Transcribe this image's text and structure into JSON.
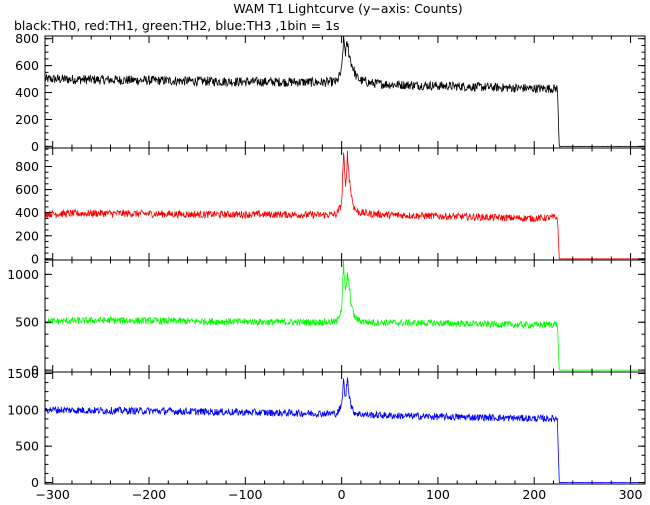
{
  "chart_data": {
    "type": "line",
    "title": "WAM T1 Lightcurve (y−axis: Counts)",
    "subtitle": "black:TH0, red:TH1, green:TH2, blue:TH3 ,1bin = 1s",
    "xlabel": "",
    "ylabel": "",
    "xlim": [
      -308,
      315
    ],
    "x_ticks": [
      -300,
      -200,
      -100,
      0,
      100,
      200,
      300
    ],
    "x_tick_labels": [
      "−300",
      "−200",
      "−100",
      "0",
      "100",
      "200",
      "300"
    ],
    "grid": false,
    "legend": "none",
    "panels": [
      {
        "name": "TH0",
        "color": "#000000",
        "ylim": [
          -12,
          820
        ],
        "y_ticks": [
          0,
          200,
          400,
          600,
          800
        ],
        "y_tick_labels": [
          "0",
          "200",
          "400",
          "600",
          "800"
        ],
        "x": [
          -300,
          -250,
          -200,
          -150,
          -100,
          -50,
          -20,
          -5,
          0,
          2,
          4,
          6,
          8,
          10,
          12,
          14,
          16,
          20,
          30,
          50,
          100,
          150,
          200,
          224,
          226,
          250,
          300,
          315
        ],
        "y": [
          500,
          495,
          490,
          485,
          480,
          478,
          476,
          480,
          560,
          800,
          700,
          760,
          680,
          620,
          580,
          540,
          510,
          490,
          470,
          460,
          450,
          440,
          430,
          430,
          0,
          0,
          0,
          0
        ]
      },
      {
        "name": "TH1",
        "color": "#ff0000",
        "ylim": [
          -10,
          960
        ],
        "y_ticks": [
          0,
          200,
          400,
          600,
          800
        ],
        "y_tick_labels": [
          "0",
          "200",
          "400",
          "600",
          "800"
        ],
        "x": [
          -300,
          -250,
          -200,
          -150,
          -100,
          -50,
          -20,
          -5,
          0,
          2,
          4,
          6,
          8,
          10,
          12,
          14,
          16,
          20,
          30,
          50,
          100,
          150,
          200,
          224,
          226,
          250,
          300,
          315
        ],
        "y": [
          390,
          395,
          390,
          385,
          385,
          383,
          380,
          385,
          480,
          920,
          600,
          900,
          700,
          560,
          470,
          430,
          410,
          400,
          390,
          380,
          370,
          360,
          350,
          360,
          0,
          0,
          0,
          0
        ]
      },
      {
        "name": "TH2",
        "color": "#00ff00",
        "ylim": [
          -20,
          1150
        ],
        "y_ticks": [
          0,
          500,
          1000
        ],
        "y_tick_labels": [
          "0",
          "500",
          "1000"
        ],
        "x": [
          -300,
          -250,
          -200,
          -150,
          -100,
          -50,
          -20,
          -5,
          0,
          2,
          4,
          6,
          8,
          10,
          12,
          14,
          16,
          20,
          30,
          50,
          100,
          150,
          200,
          224,
          226,
          250,
          300,
          315
        ],
        "y": [
          510,
          520,
          515,
          510,
          505,
          500,
          500,
          505,
          650,
          1100,
          800,
          1000,
          850,
          700,
          600,
          550,
          530,
          510,
          500,
          495,
          490,
          480,
          470,
          480,
          0,
          0,
          0,
          0
        ]
      },
      {
        "name": "TH3",
        "color": "#0000ff",
        "ylim": [
          -20,
          1520
        ],
        "y_ticks": [
          0,
          500,
          1000,
          1500
        ],
        "y_tick_labels": [
          "0",
          "500",
          "1000",
          "1500"
        ],
        "x": [
          -300,
          -250,
          -200,
          -150,
          -100,
          -50,
          -20,
          -5,
          0,
          2,
          4,
          6,
          8,
          10,
          12,
          14,
          16,
          20,
          30,
          50,
          100,
          150,
          200,
          224,
          226,
          250,
          300,
          315
        ],
        "y": [
          1000,
          990,
          985,
          975,
          965,
          955,
          950,
          950,
          1050,
          1400,
          1150,
          1450,
          1200,
          1050,
          980,
          960,
          950,
          940,
          930,
          920,
          905,
          895,
          880,
          880,
          0,
          0,
          0,
          0
        ]
      }
    ]
  }
}
